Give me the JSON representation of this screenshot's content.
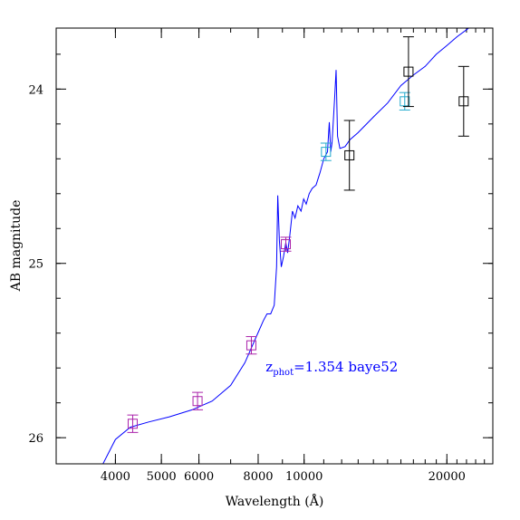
{
  "chart_data": {
    "type": "scatter",
    "title": "",
    "xlabel": "Wavelength (Å)",
    "ylabel": "AB magnitude",
    "x_scale": "log",
    "y_inverted": true,
    "xlim": [
      3000,
      25000
    ],
    "ylim": [
      26.15,
      23.65
    ],
    "x_ticks": [
      {
        "value": 4000,
        "label": "4000"
      },
      {
        "value": 5000,
        "label": "5000"
      },
      {
        "value": 6000,
        "label": "6000"
      },
      {
        "value": 8000,
        "label": "8000"
      },
      {
        "value": 10000,
        "label": "10000"
      },
      {
        "value": 20000,
        "label": "20000"
      }
    ],
    "y_ticks": [
      {
        "value": 24,
        "label": "24"
      },
      {
        "value": 25,
        "label": "25"
      },
      {
        "value": 26,
        "label": "26"
      }
    ],
    "annotation": {
      "prefix": "z",
      "subscript": "phot",
      "text": "=1.354 baye52",
      "color": "#0000ff",
      "wavelength": 8300,
      "magnitude": 25.62
    },
    "model_sed": {
      "color": "#0000ff",
      "points": [
        [
          3750,
          26.16
        ],
        [
          4000,
          26.01
        ],
        [
          4300,
          25.94
        ],
        [
          4700,
          25.91
        ],
        [
          5200,
          25.88
        ],
        [
          5800,
          25.84
        ],
        [
          6400,
          25.79
        ],
        [
          7000,
          25.7
        ],
        [
          7500,
          25.57
        ],
        [
          7900,
          25.43
        ],
        [
          8200,
          25.33
        ],
        [
          8350,
          25.29
        ],
        [
          8500,
          25.29
        ],
        [
          8650,
          25.24
        ],
        [
          8750,
          25.02
        ],
        [
          8800,
          24.61
        ],
        [
          8870,
          24.87
        ],
        [
          8950,
          25.02
        ],
        [
          9050,
          24.96
        ],
        [
          9150,
          24.88
        ],
        [
          9230,
          24.94
        ],
        [
          9330,
          24.84
        ],
        [
          9450,
          24.7
        ],
        [
          9570,
          24.74
        ],
        [
          9700,
          24.67
        ],
        [
          9850,
          24.7
        ],
        [
          9980,
          24.63
        ],
        [
          10100,
          24.66
        ],
        [
          10250,
          24.6
        ],
        [
          10400,
          24.57
        ],
        [
          10600,
          24.55
        ],
        [
          10800,
          24.48
        ],
        [
          11000,
          24.4
        ],
        [
          11200,
          24.36
        ],
        [
          11300,
          24.19
        ],
        [
          11380,
          24.36
        ],
        [
          11450,
          24.31
        ],
        [
          11600,
          24.05
        ],
        [
          11680,
          23.89
        ],
        [
          11760,
          24.27
        ],
        [
          11900,
          24.34
        ],
        [
          12200,
          24.33
        ],
        [
          12500,
          24.29
        ],
        [
          13000,
          24.25
        ],
        [
          14000,
          24.16
        ],
        [
          15000,
          24.08
        ],
        [
          16000,
          23.98
        ],
        [
          17000,
          23.92
        ],
        [
          18000,
          23.87
        ],
        [
          19000,
          23.8
        ],
        [
          20000,
          23.75
        ],
        [
          21000,
          23.7
        ],
        [
          22500,
          23.64
        ],
        [
          23500,
          23.61
        ]
      ]
    },
    "series": [
      {
        "color": "#aa22aa",
        "points": [
          {
            "x": 4350,
            "y": 25.92,
            "err": 0.05
          },
          {
            "x": 5960,
            "y": 25.79,
            "err": 0.05
          },
          {
            "x": 7740,
            "y": 25.47,
            "err": 0.05
          },
          {
            "x": 9150,
            "y": 24.89,
            "err": 0.04
          }
        ]
      },
      {
        "color": "#22aacc",
        "points": [
          {
            "x": 11120,
            "y": 24.36,
            "err": 0.05
          },
          {
            "x": 16300,
            "y": 24.07,
            "err": 0.05
          }
        ]
      },
      {
        "color": "#000000",
        "points": [
          {
            "x": 12460,
            "y": 24.38,
            "err": 0.2
          },
          {
            "x": 16600,
            "y": 23.9,
            "err": 0.2
          },
          {
            "x": 21700,
            "y": 24.07,
            "err": 0.2
          }
        ]
      }
    ]
  }
}
